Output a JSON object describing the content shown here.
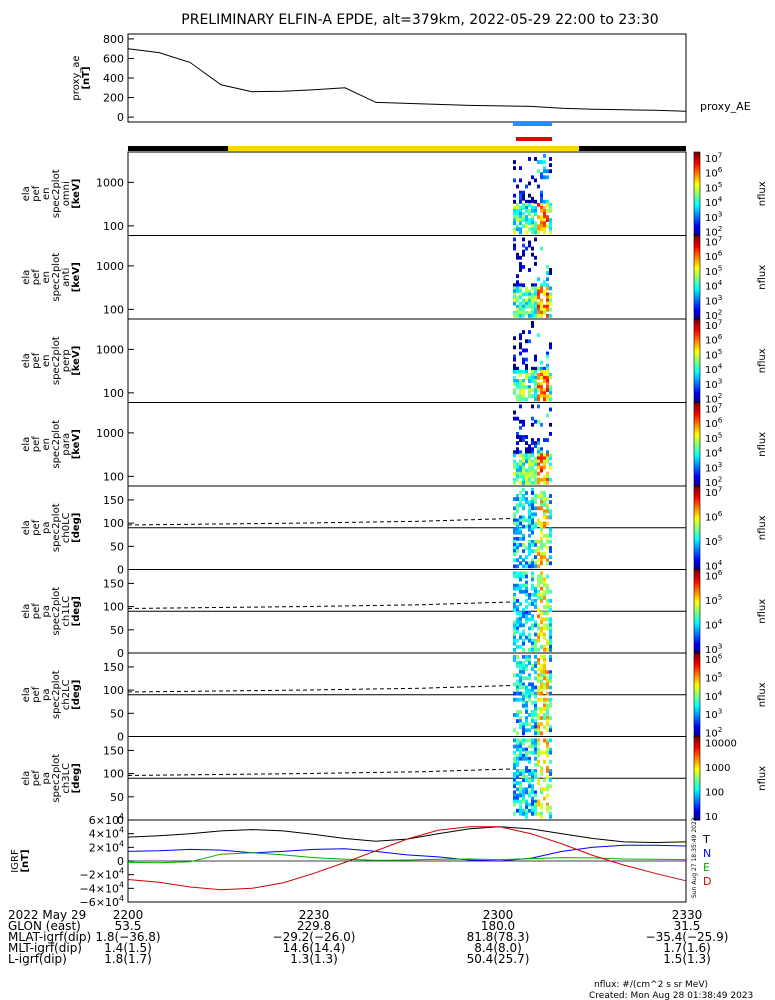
{
  "title": "PRELIMINARY ELFIN-A EPDE, alt=379km, 2022-05-29 22:00 to 23:30",
  "chart_data": [
    {
      "type": "line",
      "id": "proxy_ae",
      "ylabel_lines": [
        "proxy_ae",
        "[nT]"
      ],
      "series_label": "proxy_AE",
      "yticks": [
        "800",
        "600",
        "400",
        "200",
        "0"
      ],
      "ylim": [
        -50,
        850
      ],
      "x_minutes": [
        0,
        5,
        10,
        15,
        20,
        25,
        30,
        35,
        40,
        45,
        50,
        55,
        60,
        65,
        70,
        75,
        80,
        85,
        90
      ],
      "values": [
        700,
        660,
        560,
        330,
        260,
        265,
        280,
        300,
        150,
        140,
        130,
        120,
        115,
        110,
        90,
        80,
        75,
        70,
        60
      ]
    },
    {
      "type": "heatmap",
      "id": "spectra",
      "panels": [
        {
          "ylabel_lines": [
            "ela",
            "pef",
            "en",
            "spec2plot",
            "omni",
            "[keV]"
          ],
          "yticks": [
            "1000",
            "100"
          ],
          "cbar_ticks": [
            "10^7",
            "10^6",
            "10^5",
            "10^4",
            "10^3",
            "10^2"
          ],
          "cbar_label": "nflux"
        },
        {
          "ylabel_lines": [
            "ela",
            "pef",
            "en",
            "spec2plot",
            "anti",
            "[keV]"
          ],
          "yticks": [
            "1000",
            "100"
          ],
          "cbar_ticks": [
            "10^7",
            "10^6",
            "10^5",
            "10^4",
            "10^3",
            "10^2"
          ],
          "cbar_label": "nflux"
        },
        {
          "ylabel_lines": [
            "ela",
            "pef",
            "en",
            "spec2plot",
            "perp",
            "[keV]"
          ],
          "yticks": [
            "1000",
            "100"
          ],
          "cbar_ticks": [
            "10^7",
            "10^6",
            "10^5",
            "10^4",
            "10^3",
            "10^2"
          ],
          "cbar_label": "nflux"
        },
        {
          "ylabel_lines": [
            "ela",
            "pef",
            "en",
            "spec2plot",
            "para",
            "[keV]"
          ],
          "yticks": [
            "1000",
            "100"
          ],
          "cbar_ticks": [
            "10^7",
            "10^6",
            "10^5",
            "10^4",
            "10^3",
            "10^2"
          ],
          "cbar_label": "nflux"
        },
        {
          "ylabel_lines": [
            "ela",
            "pef",
            "pa",
            "spec2plot",
            "ch0LC",
            "[deg]"
          ],
          "yticks": [
            "150",
            "100",
            "50",
            "0"
          ],
          "cbar_ticks": [
            "10^7",
            "10^6",
            "10^5",
            "10^4"
          ],
          "cbar_label": "nflux"
        },
        {
          "ylabel_lines": [
            "ela",
            "pef",
            "pa",
            "spec2plot",
            "ch1LC",
            "[deg]"
          ],
          "yticks": [
            "150",
            "100",
            "50",
            "0"
          ],
          "cbar_ticks": [
            "10^6",
            "10^5",
            "10^4",
            "10^3"
          ],
          "cbar_label": "nflux"
        },
        {
          "ylabel_lines": [
            "ela",
            "pef",
            "pa",
            "spec2plot",
            "ch2LC",
            "[deg]"
          ],
          "yticks": [
            "150",
            "100",
            "50",
            "0"
          ],
          "cbar_ticks": [
            "10^6",
            "10^5",
            "10^4",
            "10^3",
            "10^2"
          ],
          "cbar_label": "nflux"
        },
        {
          "ylabel_lines": [
            "ela",
            "pef",
            "pa",
            "spec2plot",
            "ch3LC",
            "[deg]"
          ],
          "yticks": [
            "150",
            "100",
            "50",
            "0"
          ],
          "cbar_ticks": [
            "10000",
            "1000",
            "100",
            "10"
          ],
          "cbar_label": "nflux"
        }
      ]
    },
    {
      "type": "line",
      "id": "igrf",
      "ylabel_lines": [
        "IGRF",
        "[nT]"
      ],
      "yticks": [
        "6×10^4",
        "4×10^4",
        "2×10^4",
        "0",
        "−2×10^4",
        "−4×10^4",
        "−6×10^4"
      ],
      "ylim": [
        -60000,
        60000
      ],
      "x_minutes": [
        0,
        5,
        10,
        15,
        20,
        25,
        30,
        35,
        40,
        45,
        50,
        55,
        60,
        65,
        70,
        75,
        80,
        85,
        90
      ],
      "series": [
        {
          "name": "T",
          "color": "#000000",
          "values": [
            35000,
            37000,
            40000,
            44000,
            46000,
            44000,
            39000,
            33000,
            29000,
            32000,
            40000,
            47000,
            50000,
            47000,
            40000,
            33000,
            28000,
            27000,
            28000
          ]
        },
        {
          "name": "N",
          "color": "#0000ff",
          "values": [
            14000,
            15000,
            17000,
            16000,
            12000,
            14000,
            17000,
            18000,
            14000,
            9000,
            6000,
            1500,
            0,
            4000,
            14000,
            20000,
            23000,
            23000,
            22000
          ]
        },
        {
          "name": "E",
          "color": "#00b000",
          "values": [
            -2000,
            -2500,
            -1000,
            10000,
            12000,
            9000,
            5000,
            2500,
            1000,
            1500,
            2500,
            3000,
            2000,
            3500,
            5000,
            4500,
            3000,
            2500,
            2000
          ]
        },
        {
          "name": "D",
          "color": "#d00000",
          "values": [
            -27000,
            -31000,
            -38000,
            -42000,
            -40000,
            -32000,
            -18000,
            -2000,
            15000,
            32000,
            45000,
            50000,
            50000,
            40000,
            25000,
            8000,
            -6000,
            -18000,
            -29000
          ]
        }
      ]
    }
  ],
  "time_labels": [
    "2200",
    "2230",
    "2300",
    "2330"
  ],
  "ephem": {
    "labels": [
      "2022 May 29",
      "GLON (east)",
      "MLAT-igrf(dip)",
      "MLT-igrf(dip)",
      "L-igrf(dip)"
    ],
    "rows": [
      [
        "53.5",
        "229.8",
        "180.0",
        "31.5"
      ],
      [
        "1.8(−36.8)",
        "−29.2(−26.0)",
        "81.8(78.3)",
        "−35.4(−25.9)"
      ],
      [
        "1.4(1.5)",
        "14.6(14.4)",
        "8.4(8.0)",
        "1.7(1.6)"
      ],
      [
        "1.8(1.7)",
        "1.3(1.3)",
        "50.4(25.7)",
        "1.5(1.3)"
      ]
    ]
  },
  "footer": {
    "units": "nflux: #/(cm^2 s sr MeV)",
    "created": "Created: Mon Aug 28 01:38:49 2023",
    "stamp": "Sun Aug 27 18:35:49 2023"
  },
  "colors": {
    "sunlit_bar": "#ffd700",
    "shadow_bar": "#000000",
    "science_zone_blue": "#1e90ff",
    "science_zone_red": "#ee0000"
  }
}
